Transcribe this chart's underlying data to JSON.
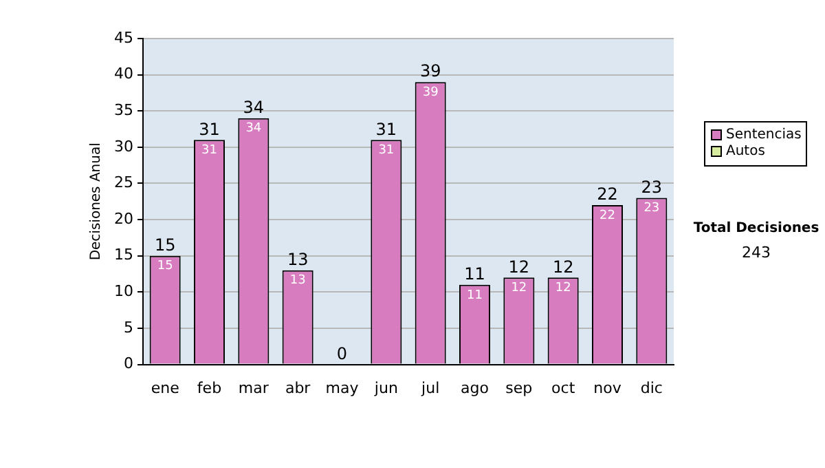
{
  "chart_data": {
    "type": "bar",
    "stacked": true,
    "ylabel": "Decisiones Anual",
    "categories": [
      "ene",
      "feb",
      "mar",
      "abr",
      "may",
      "jun",
      "jul",
      "ago",
      "sep",
      "oct",
      "nov",
      "dic"
    ],
    "series": [
      {
        "name": "Sentencias",
        "color": "#d87cc0",
        "values": [
          15,
          31,
          34,
          13,
          0,
          31,
          39,
          11,
          12,
          12,
          22,
          23
        ],
        "value_labels": [
          "15",
          "31",
          "34",
          "13",
          null,
          "31",
          "39",
          "11",
          "12",
          "12",
          "22",
          "23"
        ]
      },
      {
        "name": "Autos",
        "color": "#d8eca0",
        "values": [
          0,
          0,
          0,
          0,
          0,
          0,
          0,
          0,
          0,
          0,
          0,
          0
        ]
      }
    ],
    "totals": [
      "15",
      "31",
      "34",
      "13",
      "0",
      "31",
      "39",
      "11",
      "12",
      "12",
      "22",
      "23"
    ],
    "ylim": [
      0,
      45
    ],
    "yticks": [
      0,
      5,
      10,
      15,
      20,
      25,
      30,
      35,
      40,
      45
    ],
    "grid": "y",
    "legend": "right",
    "annotations": [
      "Total Decisiones",
      "243"
    ]
  }
}
